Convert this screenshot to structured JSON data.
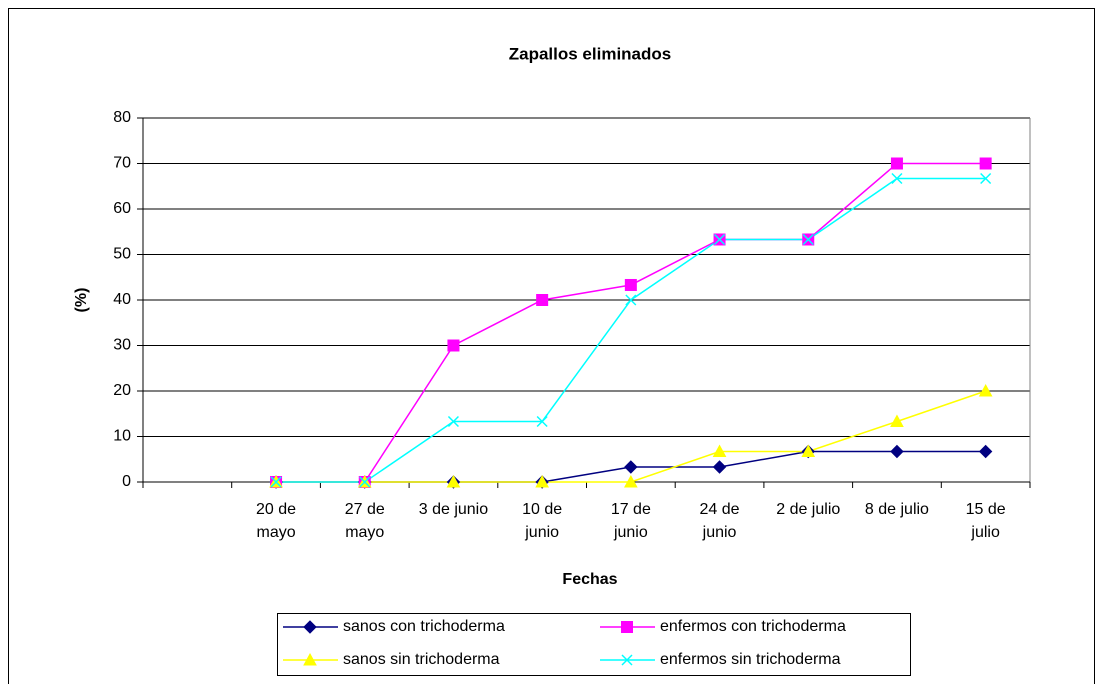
{
  "chart_data": {
    "type": "line",
    "title": "Zapallos eliminados",
    "x_label": "Fechas",
    "y_label": "(%)",
    "categories": [
      null,
      "20 de mayo",
      "27 de mayo",
      "3 de junio",
      "10 de junio",
      "17 de junio",
      "24 de junio",
      "2 de julio",
      "8 de julio",
      "15 de julio"
    ],
    "series": [
      {
        "name": "sanos con trichoderma",
        "color": "#000080",
        "marker": "diamond",
        "values": [
          null,
          0,
          0,
          0,
          0,
          3.3,
          3.3,
          6.7,
          6.7,
          6.7
        ]
      },
      {
        "name": "enfermos con trichoderma",
        "color": "#ff00ff",
        "marker": "square",
        "values": [
          null,
          0,
          0,
          30,
          40,
          43.3,
          53.3,
          53.3,
          70,
          70
        ]
      },
      {
        "name": "sanos sin trichoderma",
        "color": "#ffff00",
        "marker": "triangle",
        "values": [
          null,
          0,
          0,
          0,
          0,
          0,
          6.7,
          6.7,
          13.3,
          20
        ]
      },
      {
        "name": "enfermos sin trichoderma",
        "color": "#00ffff",
        "marker": "x",
        "values": [
          null,
          0,
          0,
          13.3,
          13.3,
          40,
          53.3,
          53.3,
          66.7,
          66.7
        ]
      }
    ],
    "ylim": [
      0,
      80
    ],
    "yticks": [
      0,
      10,
      20,
      30,
      40,
      50,
      60,
      70,
      80
    ],
    "grid": true,
    "legend": "bottom"
  }
}
